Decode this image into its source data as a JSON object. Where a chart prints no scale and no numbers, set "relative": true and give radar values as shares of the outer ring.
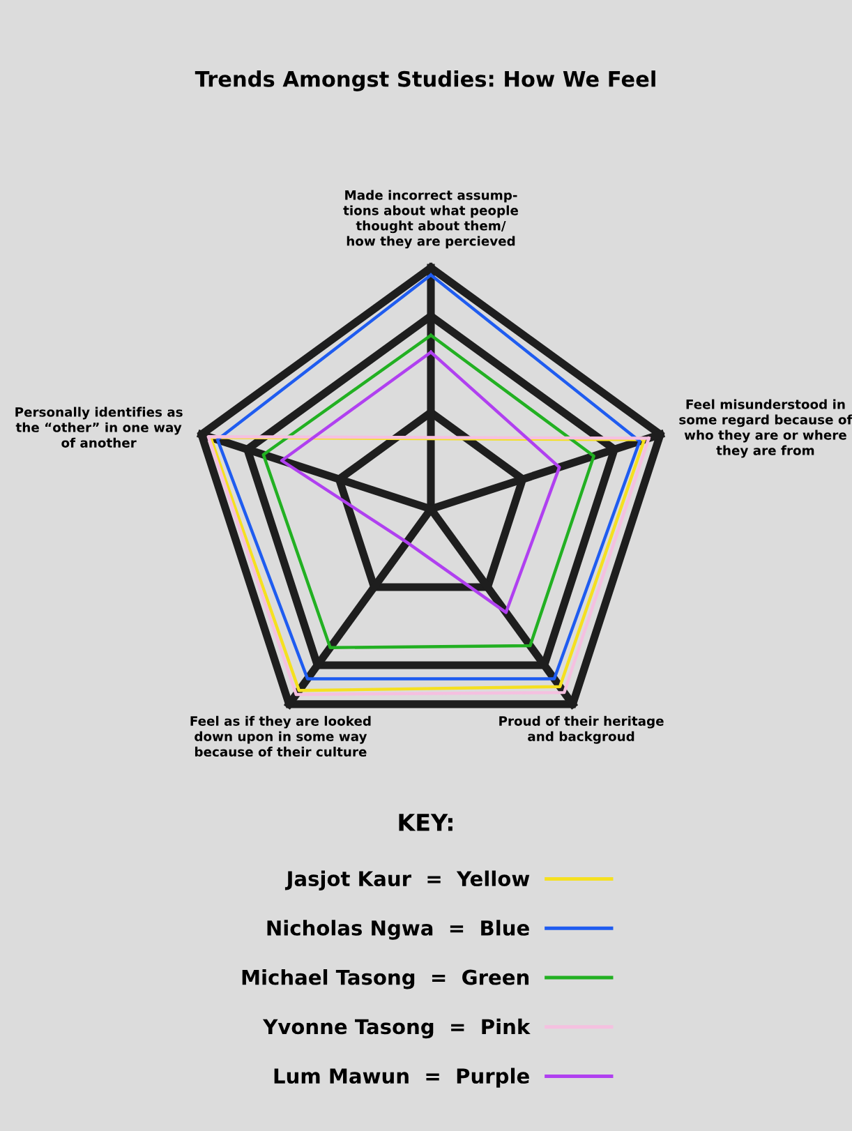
{
  "chart_data": {
    "type": "radar",
    "title": "Trends Amongst Studies: How We Feel",
    "relative": true,
    "legend_title": "KEY:",
    "legend": "bottom",
    "grid": true,
    "categories": [
      "Made incorrect assump-\ntions about what people\nthought about them/\nhow they are percieved",
      "Feel misunderstood in\nsome regard because of\nwho they are or where\nthey are from",
      "Proud of their heritage\nand backgroud",
      "Feel as if they are looked\ndown upon in some way\nbecause of their culture",
      "Personally identifies as\nthe “other” in one way\nof another"
    ],
    "series": [
      {
        "name": "Jasjot Kaur  =  Yellow",
        "color": "#f5e020",
        "values": [
          null,
          0.93,
          0.91,
          0.93,
          0.96
        ]
      },
      {
        "name": "Nicholas Ngwa  =  Blue",
        "color": "#1f5cf0",
        "values": [
          0.97,
          0.91,
          0.87,
          0.87,
          0.93
        ]
      },
      {
        "name": "Michael Tasong  =  Green",
        "color": "#22b022",
        "values": [
          0.72,
          0.71,
          0.7,
          0.71,
          0.73
        ]
      },
      {
        "name": "Yvonne Tasong  =  Pink",
        "color": "#f5c0e0",
        "values": [
          null,
          0.95,
          0.94,
          0.95,
          0.97
        ]
      },
      {
        "name": "Lum Mawun  =  Purple",
        "color": "#b040f0",
        "values": [
          0.65,
          0.56,
          0.53,
          0.17,
          0.65
        ]
      }
    ]
  }
}
